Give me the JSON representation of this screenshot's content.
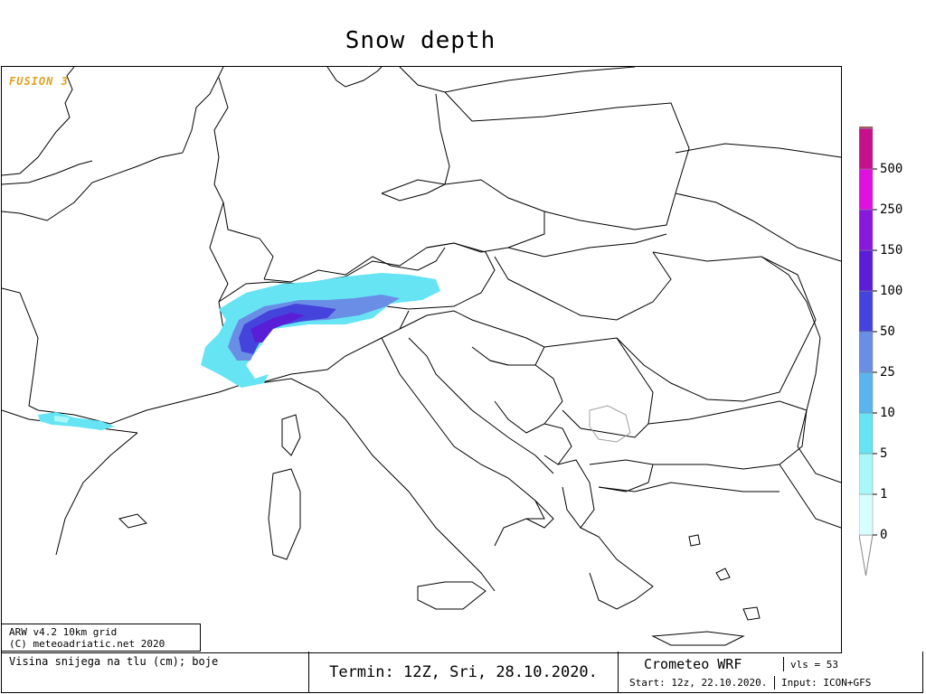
{
  "title": "Snow depth",
  "watermark": "FUSION 3",
  "model_info": {
    "line1": "ARW v4.2 10km grid",
    "line2": "(C) meteoadriatic.net 2020"
  },
  "footer": {
    "description": "Visina snijega na tlu (cm); boje",
    "termin": "Termin: 12Z, Sri, 28.10.2020.",
    "brand": "Crometeo WRF",
    "vls": "vls = 53",
    "start": "Start: 12z, 22.10.2020.",
    "input": "Input: ICON+GFS"
  },
  "legend": {
    "labels": [
      "0",
      "1",
      "5",
      "10",
      "25",
      "50",
      "100",
      "150",
      "250",
      "500"
    ],
    "colors": [
      "#d8ffff",
      "#a8f8f8",
      "#66e4f4",
      "#5ab4f0",
      "#6a8ee6",
      "#4444dd",
      "#5a1ed6",
      "#8a18dc",
      "#e010e0",
      "#c8108c"
    ],
    "top_color": "#a85050"
  },
  "map": {
    "land_color": "#ffffff",
    "border_color": "#000000",
    "kosovo_border_color": "#a0a0a0"
  }
}
